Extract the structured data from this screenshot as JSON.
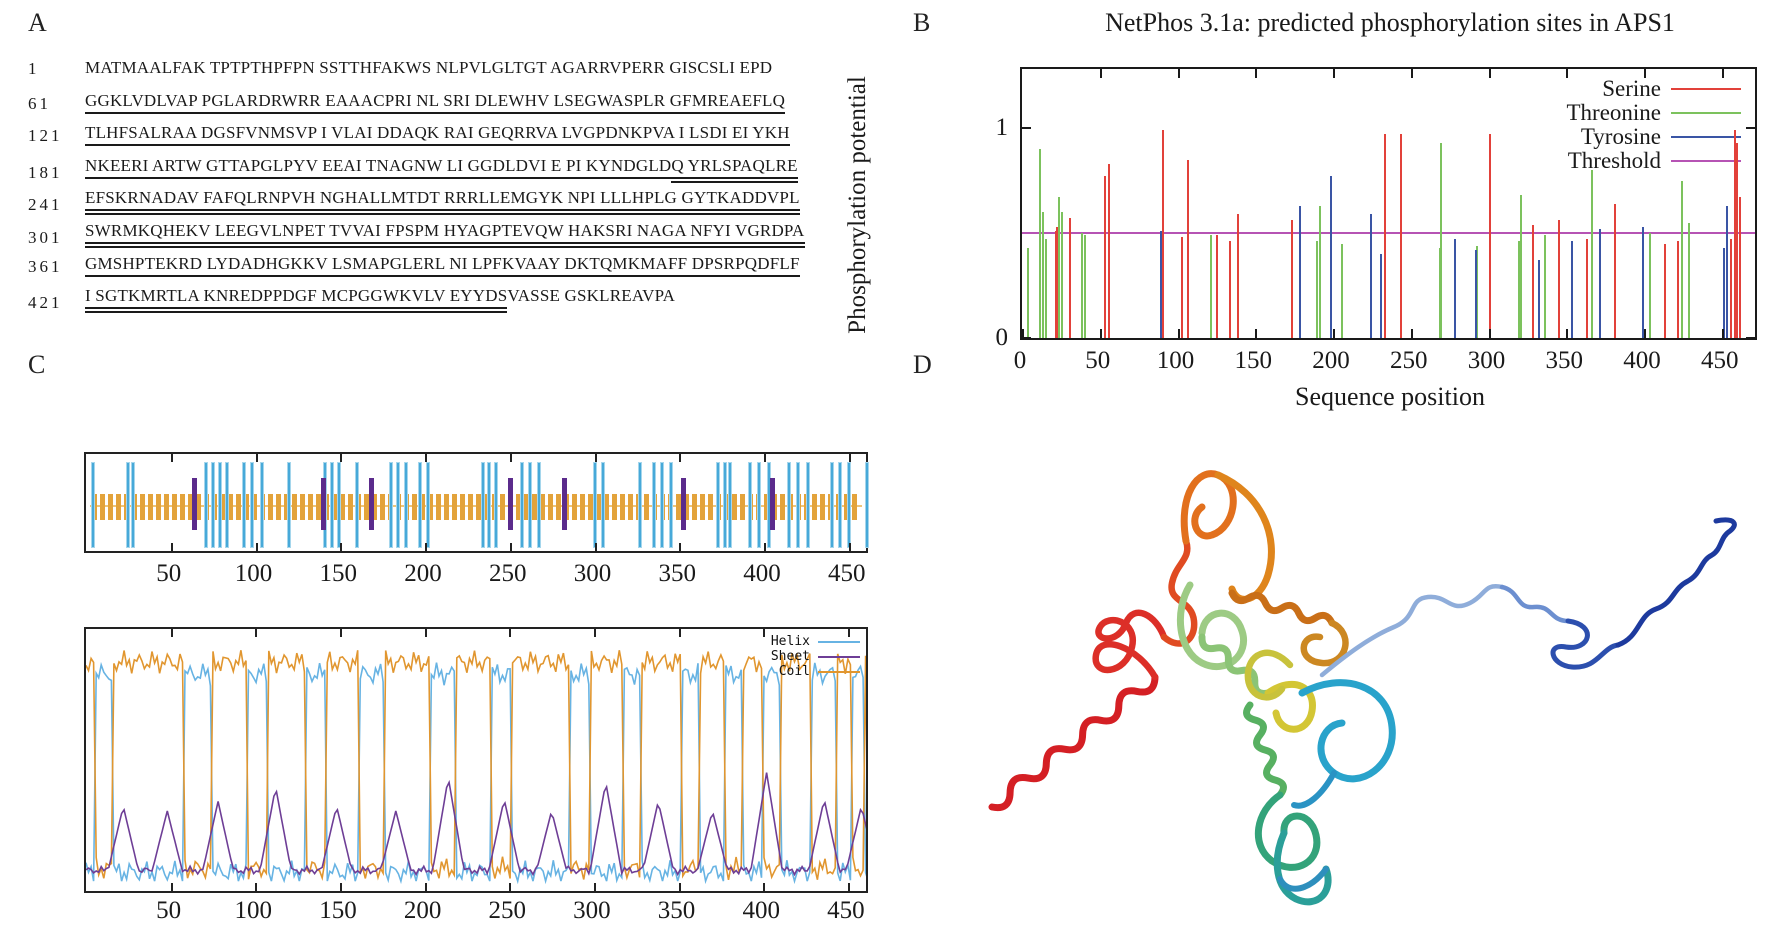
{
  "panels": {
    "a": "A",
    "b": "B",
    "c": "C",
    "d": "D"
  },
  "sequence_panel": {
    "lines": [
      {
        "num": "1",
        "segments": [
          {
            "t": "MATMAALFAK TPTPTHPFPN SSTTHFAKWS NLPVLGLTGT AGARRVPERR GISCSLI EPD",
            "u": "none"
          }
        ]
      },
      {
        "num": "61",
        "segments": [
          {
            "t": "GGKLVDLVAP PGLARDRWRR EAAACPRI NL SRI DLEWHV LSEGWASPLR GFMREAEFLQ",
            "u": "single"
          }
        ]
      },
      {
        "num": "121",
        "segments": [
          {
            "t": "TLHFSALRAA DGSFVNMSVP I VLAI DDAQK RAI GEQRRVA LVGPDNKPVA I LSDI EI YKH",
            "u": "single"
          }
        ]
      },
      {
        "num": "181",
        "segments": [
          {
            "t": "NKEERI ARTW GTTAPGLPYV EEAI TNAGNW LI GGDLDVI E PI KYNDGLD",
            "u": "single"
          },
          {
            "t": "Q YRLSPAQLRE",
            "u": "double"
          }
        ]
      },
      {
        "num": "241",
        "segments": [
          {
            "t": "EFSKRNADAV FAFQLRNPVH NGHALLMTDT RRRLLEMGYK NPI LLLHPLG GYTKADDVPL",
            "u": "double"
          }
        ]
      },
      {
        "num": "301",
        "segments": [
          {
            "t": "SWRMKQHEKV LEEGVLNPET TVVAI FPSPM HYAGPTEVQW HAKSRI NAGA NFYI VGRDPA",
            "u": "double"
          }
        ]
      },
      {
        "num": "361",
        "segments": [
          {
            "t": "GMSHPTEKRD LYDADHGKKV LSMAPGLERL NI LPFKVAAY DKTQMKMAFF DPSRPQDFLF",
            "u": "single"
          }
        ]
      },
      {
        "num": "421",
        "segments": [
          {
            "t": "I SGTKMRTLA KNREDPPDGF MCPGGWKVLV EYYDS",
            "u": "double"
          },
          {
            "t": "VASSE GSKLREAVPA",
            "u": "none"
          }
        ]
      }
    ]
  },
  "chart_data": [
    {
      "id": "netphos",
      "type": "bar",
      "title": "NetPhos 3.1a: predicted phosphorylation sites in APS1",
      "xlabel": "Sequence position",
      "ylabel": "Phosphorylation potential",
      "xlim": [
        0,
        474
      ],
      "ylim": [
        0,
        1.3
      ],
      "xticks": [
        0,
        50,
        100,
        150,
        200,
        250,
        300,
        350,
        400,
        450
      ],
      "yticks": [
        0,
        1
      ],
      "threshold": 0.5,
      "threshold_color": "#b653b4",
      "legend_position": "top-right",
      "legend": [
        {
          "label": "Serine",
          "color": "#e2413a"
        },
        {
          "label": "Threonine",
          "color": "#7cc25d"
        },
        {
          "label": "Tyrosine",
          "color": "#3a55a5"
        },
        {
          "label": "Threshold",
          "color": "#b653b4"
        }
      ],
      "series": [
        {
          "name": "Serine",
          "color": "#e2413a",
          "points": [
            [
              21,
              0.51
            ],
            [
              22,
              0.53
            ],
            [
              30,
              0.57
            ],
            [
              53,
              0.77
            ],
            [
              55,
              0.83
            ],
            [
              90,
              0.99
            ],
            [
              102,
              0.48
            ],
            [
              106,
              0.85
            ],
            [
              125,
              0.49
            ],
            [
              133,
              0.46
            ],
            [
              138,
              0.59
            ],
            [
              173,
              0.56
            ],
            [
              233,
              0.97
            ],
            [
              243,
              0.97
            ],
            [
              300,
              0.97
            ],
            [
              328,
              0.54
            ],
            [
              345,
              0.56
            ],
            [
              363,
              0.47
            ],
            [
              381,
              0.64
            ],
            [
              413,
              0.45
            ],
            [
              421,
              0.46
            ],
            [
              455,
              0.47
            ],
            [
              458,
              0.99
            ],
            [
              459,
              0.93
            ],
            [
              461,
              0.67
            ]
          ]
        },
        {
          "name": "Threonine",
          "color": "#7cc25d",
          "points": [
            [
              3,
              0.43
            ],
            [
              11,
              0.9
            ],
            [
              13,
              0.6
            ],
            [
              15,
              0.47
            ],
            [
              23,
              0.67
            ],
            [
              25,
              0.6
            ],
            [
              38,
              0.5
            ],
            [
              40,
              0.49
            ],
            [
              121,
              0.49
            ],
            [
              189,
              0.46
            ],
            [
              191,
              0.63
            ],
            [
              205,
              0.45
            ],
            [
              268,
              0.43
            ],
            [
              269,
              0.93
            ],
            [
              292,
              0.44
            ],
            [
              319,
              0.46
            ],
            [
              320,
              0.68
            ],
            [
              336,
              0.49
            ],
            [
              366,
              0.8
            ],
            [
              403,
              0.5
            ],
            [
              424,
              0.75
            ],
            [
              428,
              0.55
            ]
          ]
        },
        {
          "name": "Tyrosine",
          "color": "#3a55a5",
          "points": [
            [
              89,
              0.51
            ],
            [
              178,
              0.63
            ],
            [
              198,
              0.77
            ],
            [
              224,
              0.59
            ],
            [
              230,
              0.4
            ],
            [
              278,
              0.47
            ],
            [
              291,
              0.42
            ],
            [
              332,
              0.37
            ],
            [
              353,
              0.46
            ],
            [
              371,
              0.52
            ],
            [
              399,
              0.53
            ],
            [
              451,
              0.43
            ],
            [
              453,
              0.63
            ]
          ]
        }
      ]
    },
    {
      "id": "feature-map",
      "type": "feature-map",
      "xlim": [
        0,
        462
      ],
      "xticks": [
        50,
        100,
        150,
        200,
        250,
        300,
        350,
        400,
        450
      ],
      "band_color": "#e3a33b",
      "cyan_color": "#47a9d9",
      "purple_color": "#5b2b8c",
      "cyan_positions": [
        4,
        25,
        28,
        71,
        75,
        79,
        83,
        93,
        98,
        104,
        120,
        141,
        145,
        149,
        160,
        180,
        184,
        189,
        197,
        202,
        234,
        238,
        242,
        257,
        262,
        267,
        300,
        305,
        327,
        335,
        340,
        345,
        373,
        377,
        380,
        392,
        397,
        403,
        415,
        420,
        426,
        440,
        445,
        450,
        461
      ],
      "purple_positions": [
        64,
        140,
        168,
        250,
        282,
        352,
        405
      ]
    },
    {
      "id": "secondary-structure",
      "type": "line",
      "xlim": [
        0,
        462
      ],
      "xticks": [
        50,
        100,
        150,
        200,
        250,
        300,
        350,
        400,
        450
      ],
      "legend": [
        {
          "label": "Helix",
          "color": "#67b3e3"
        },
        {
          "label": "Sheet",
          "color": "#6e3e96"
        },
        {
          "label": "Coil",
          "color": "#e1962f"
        }
      ],
      "helix_high": [
        [
          6,
          16
        ],
        [
          58,
          74
        ],
        [
          96,
          108
        ],
        [
          130,
          142
        ],
        [
          162,
          176
        ],
        [
          204,
          218
        ],
        [
          240,
          252
        ],
        [
          286,
          298
        ],
        [
          318,
          328
        ],
        [
          352,
          362
        ],
        [
          378,
          388
        ],
        [
          400,
          410
        ],
        [
          428,
          444
        ],
        [
          452,
          460
        ]
      ],
      "coil_high": [
        [
          0,
          6
        ],
        [
          16,
          58
        ],
        [
          74,
          96
        ],
        [
          108,
          130
        ],
        [
          142,
          162
        ],
        [
          176,
          204
        ],
        [
          218,
          240
        ],
        [
          252,
          286
        ],
        [
          298,
          318
        ],
        [
          328,
          352
        ],
        [
          362,
          378
        ],
        [
          388,
          400
        ],
        [
          410,
          428
        ],
        [
          444,
          452
        ],
        [
          460,
          462
        ]
      ],
      "sheet_bumps": [
        [
          22,
          0.3
        ],
        [
          48,
          0.28
        ],
        [
          78,
          0.32
        ],
        [
          112,
          0.38
        ],
        [
          148,
          0.3
        ],
        [
          183,
          0.28
        ],
        [
          214,
          0.42
        ],
        [
          247,
          0.33
        ],
        [
          275,
          0.28
        ],
        [
          307,
          0.4
        ],
        [
          338,
          0.32
        ],
        [
          370,
          0.28
        ],
        [
          402,
          0.44
        ],
        [
          436,
          0.33
        ],
        [
          458,
          0.3
        ]
      ]
    }
  ],
  "structure_panel": {
    "palette": [
      "#d41f24",
      "#e04b22",
      "#e2701d",
      "#cc8822",
      "#d3c635",
      "#8bc476",
      "#57b061",
      "#33a37a",
      "#29a3cb",
      "#2f7fc0",
      "#8fadda",
      "#2c4fae",
      "#1d3a9e"
    ]
  }
}
